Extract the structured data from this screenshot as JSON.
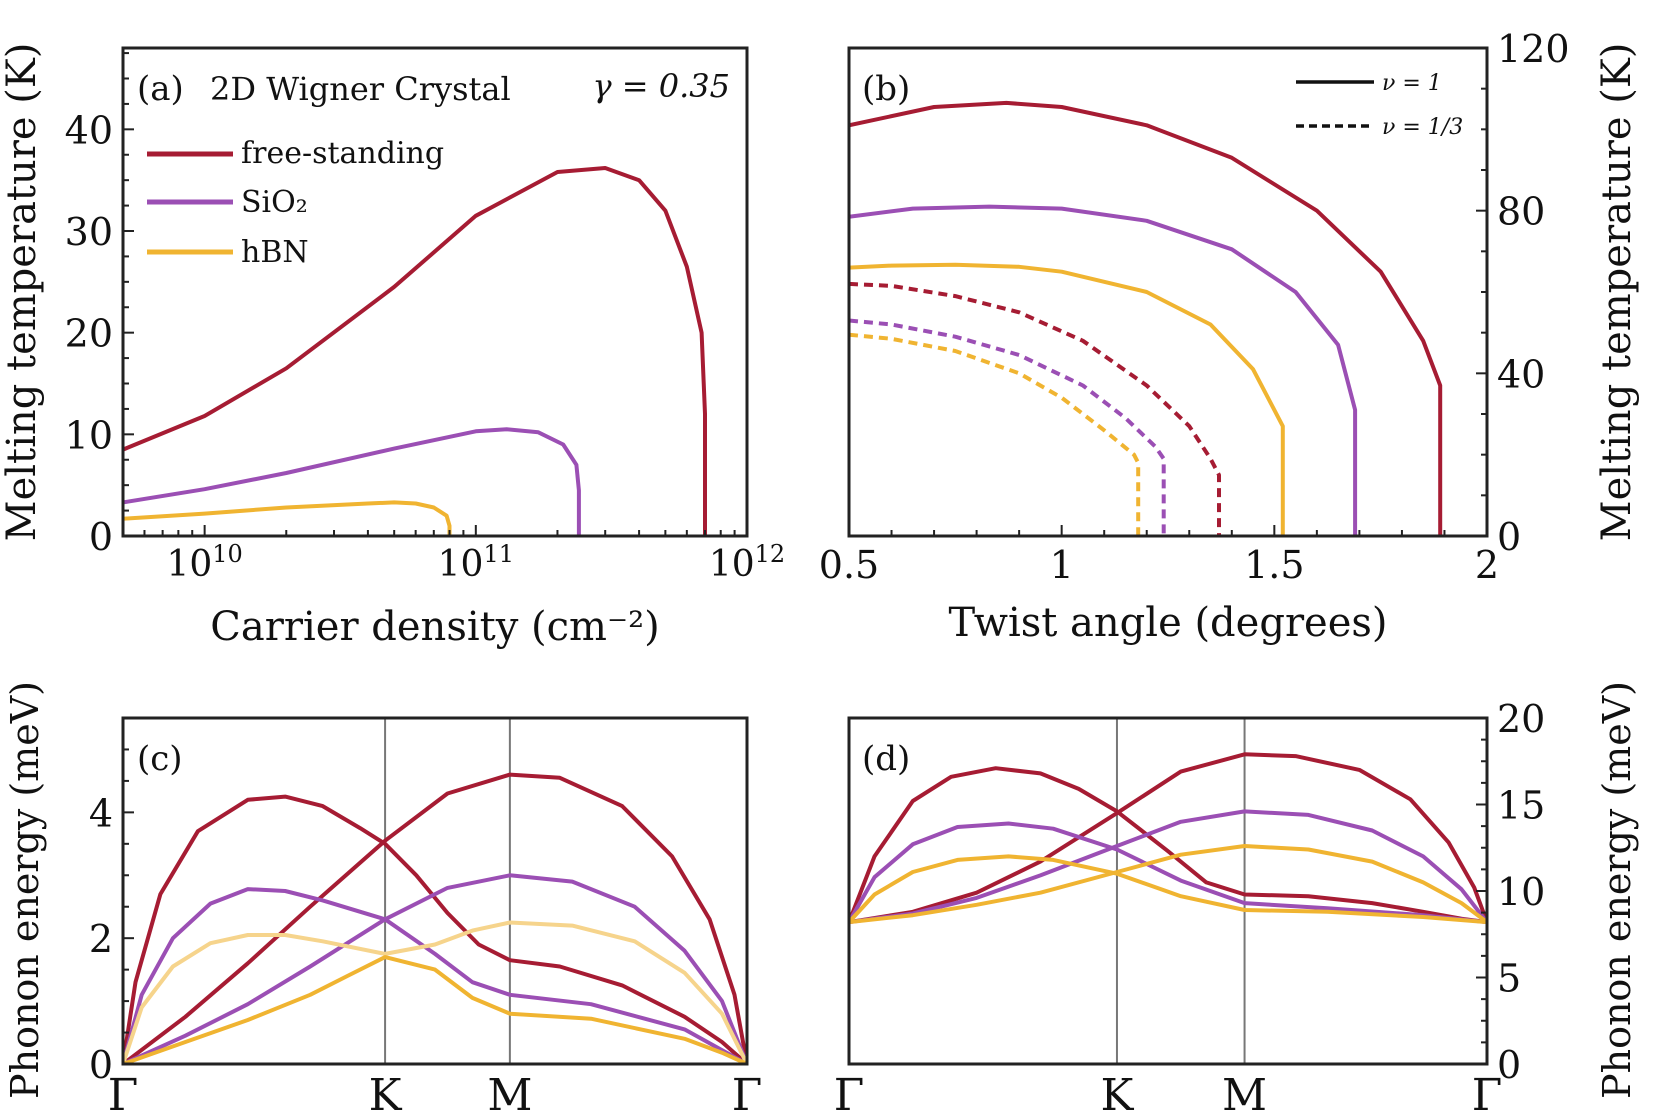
{
  "colors": {
    "free_standing": "#a61c33",
    "sio2": "#9b4fb4",
    "hbn": "#f0b431",
    "hbn_light": "#f6d48c",
    "kline": "#777777",
    "axis": "#222222"
  },
  "chart_data": [
    {
      "id": "a",
      "type": "line",
      "panel_label": "(a)",
      "title": "2D Wigner Crystal",
      "annotation": "γ = 0.35",
      "xlabel": "Carrier density (cm⁻²)",
      "ylabel": "Melting temperature (K)",
      "xscale": "log",
      "xlim": [
        5000000000.0,
        1000000000000.0
      ],
      "ylim": [
        0,
        48
      ],
      "xticks": [
        10000000000.0,
        100000000000.0,
        1000000000000.0
      ],
      "xtick_labels": [
        {
          "base": "10",
          "exp": "10"
        },
        {
          "base": "10",
          "exp": "11"
        },
        {
          "base": "10",
          "exp": "12"
        }
      ],
      "yticks": [
        0,
        10,
        20,
        30,
        40
      ],
      "ytick_labels": [
        "0",
        "10",
        "20",
        "30",
        "40"
      ],
      "legend": [
        "free-standing",
        "SiO₂",
        "hBN"
      ],
      "series": [
        {
          "name": "free-standing",
          "color_key": "free_standing",
          "dash": false,
          "x": [
            5000000000.0,
            10000000000.0,
            20000000000.0,
            50000000000.0,
            100000000000.0,
            200000000000.0,
            300000000000.0,
            400000000000.0,
            500000000000.0,
            600000000000.0,
            680000000000.0,
            700000000000.0,
            700000000000.0
          ],
          "y": [
            8.5,
            11.8,
            16.5,
            24.5,
            31.5,
            35.8,
            36.2,
            35.0,
            32.0,
            26.5,
            20.0,
            12.0,
            0
          ]
        },
        {
          "name": "SiO₂",
          "color_key": "sio2",
          "dash": false,
          "x": [
            5000000000.0,
            10000000000.0,
            20000000000.0,
            50000000000.0,
            100000000000.0,
            130000000000.0,
            170000000000.0,
            210000000000.0,
            235000000000.0,
            240000000000.0,
            240000000000.0
          ],
          "y": [
            3.3,
            4.6,
            6.2,
            8.6,
            10.3,
            10.5,
            10.2,
            9.0,
            7.0,
            4.5,
            0
          ]
        },
        {
          "name": "hBN",
          "color_key": "hbn",
          "dash": false,
          "x": [
            5000000000.0,
            10000000000.0,
            20000000000.0,
            40000000000.0,
            50000000000.0,
            60000000000.0,
            70000000000.0,
            78000000000.0,
            80000000000.0,
            80000000000.0
          ],
          "y": [
            1.7,
            2.2,
            2.8,
            3.2,
            3.3,
            3.2,
            2.8,
            2.0,
            1.0,
            0
          ]
        }
      ]
    },
    {
      "id": "b",
      "type": "line",
      "panel_label": "(b)",
      "xlabel": "Twist angle (degrees)",
      "ylabel": "Melting temperature (K)",
      "y_axis_side": "right",
      "xlim": [
        0.5,
        2
      ],
      "ylim": [
        0,
        120
      ],
      "xticks": [
        0.5,
        1,
        1.5,
        2
      ],
      "xtick_labels": [
        "0.5",
        "1",
        "1.5",
        "2"
      ],
      "yticks": [
        0,
        40,
        80,
        120
      ],
      "ytick_labels": [
        "0",
        "40",
        "80",
        "120"
      ],
      "legend": [
        "ν = 1",
        "ν = 1/3"
      ],
      "series": [
        {
          "name": "free-standing ν=1",
          "color_key": "free_standing",
          "dash": false,
          "x": [
            0.5,
            0.7,
            0.87,
            1.0,
            1.2,
            1.4,
            1.6,
            1.75,
            1.85,
            1.89,
            1.89
          ],
          "y": [
            101,
            105.5,
            106.5,
            105.5,
            101,
            93,
            80,
            65,
            48,
            37,
            0
          ]
        },
        {
          "name": "SiO₂ ν=1",
          "color_key": "sio2",
          "dash": false,
          "x": [
            0.5,
            0.65,
            0.83,
            1.0,
            1.2,
            1.4,
            1.55,
            1.65,
            1.69,
            1.69
          ],
          "y": [
            78.5,
            80.5,
            81,
            80.5,
            77.5,
            70.5,
            60,
            47,
            31,
            0
          ]
        },
        {
          "name": "hBN ν=1",
          "color_key": "hbn",
          "dash": false,
          "x": [
            0.5,
            0.6,
            0.75,
            0.9,
            1.0,
            1.2,
            1.35,
            1.45,
            1.52,
            1.52
          ],
          "y": [
            66,
            66.5,
            66.7,
            66.2,
            65,
            60,
            52,
            41,
            27,
            0
          ]
        },
        {
          "name": "free-standing ν=1/3",
          "color_key": "free_standing",
          "dash": true,
          "x": [
            0.5,
            0.6,
            0.75,
            0.9,
            1.05,
            1.2,
            1.3,
            1.35,
            1.37,
            1.37
          ],
          "y": [
            62,
            61.5,
            59,
            55,
            48,
            37,
            27,
            19,
            15,
            0
          ]
        },
        {
          "name": "SiO₂ ν=1/3",
          "color_key": "sio2",
          "dash": true,
          "x": [
            0.5,
            0.6,
            0.75,
            0.9,
            1.05,
            1.15,
            1.22,
            1.24,
            1.24
          ],
          "y": [
            53,
            52,
            49,
            44.5,
            37,
            29,
            22,
            19,
            0
          ]
        },
        {
          "name": "hBN ν=1/3",
          "color_key": "hbn",
          "dash": true,
          "x": [
            0.5,
            0.6,
            0.75,
            0.9,
            1.0,
            1.1,
            1.17,
            1.18,
            1.18
          ],
          "y": [
            49.5,
            48.5,
            45.5,
            40,
            34,
            26,
            20,
            18,
            0
          ]
        }
      ]
    },
    {
      "id": "c",
      "type": "line",
      "panel_label": "(c)",
      "ylabel": "Phonon energy (meV)",
      "xlim": [
        0,
        1
      ],
      "ylim": [
        0,
        5.5
      ],
      "yticks": [
        0,
        2,
        4
      ],
      "ytick_labels": [
        "0",
        "2",
        "4"
      ],
      "kpoints": {
        "labels": [
          "Γ",
          "K",
          "M",
          "Γ"
        ],
        "positions": [
          0,
          0.42,
          0.62,
          1
        ]
      },
      "series": [
        {
          "name": "free-standing branch 1",
          "color_key": "free_standing",
          "dash": false,
          "x": [
            0,
            0.02,
            0.06,
            0.12,
            0.2,
            0.26,
            0.32,
            0.38,
            0.42,
            0.47,
            0.52,
            0.57,
            0.62,
            0.7,
            0.8,
            0.9,
            0.96,
            1.0
          ],
          "y": [
            0,
            1.3,
            2.7,
            3.7,
            4.2,
            4.25,
            4.1,
            3.75,
            3.5,
            3.0,
            2.4,
            1.9,
            1.65,
            1.55,
            1.25,
            0.75,
            0.35,
            0
          ]
        },
        {
          "name": "free-standing branch 2",
          "color_key": "free_standing",
          "dash": false,
          "x": [
            0,
            0.1,
            0.2,
            0.3,
            0.42,
            0.52,
            0.62,
            0.7,
            0.8,
            0.88,
            0.94,
            0.98,
            1.0
          ],
          "y": [
            0,
            0.75,
            1.6,
            2.5,
            3.55,
            4.3,
            4.6,
            4.55,
            4.1,
            3.3,
            2.3,
            1.1,
            0
          ]
        },
        {
          "name": "SiO₂ branch 1",
          "color_key": "sio2",
          "dash": false,
          "x": [
            0,
            0.03,
            0.08,
            0.14,
            0.2,
            0.26,
            0.32,
            0.42,
            0.5,
            0.56,
            0.62,
            0.75,
            0.9,
            1.0
          ],
          "y": [
            0,
            1.1,
            2.0,
            2.55,
            2.78,
            2.75,
            2.6,
            2.3,
            1.75,
            1.3,
            1.1,
            0.95,
            0.55,
            0
          ]
        },
        {
          "name": "SiO₂ branch 2",
          "color_key": "sio2",
          "dash": false,
          "x": [
            0,
            0.1,
            0.2,
            0.3,
            0.42,
            0.52,
            0.62,
            0.72,
            0.82,
            0.9,
            0.96,
            1.0
          ],
          "y": [
            0,
            0.45,
            0.95,
            1.55,
            2.3,
            2.8,
            3.0,
            2.9,
            2.5,
            1.8,
            1.0,
            0
          ]
        },
        {
          "name": "hBN branch 1",
          "color_key": "hbn_light",
          "dash": false,
          "x": [
            0,
            0.03,
            0.08,
            0.14,
            0.2,
            0.26,
            0.32,
            0.42,
            0.5,
            0.56,
            0.62,
            0.72,
            0.82,
            0.9,
            0.96,
            1.0
          ],
          "y": [
            0,
            0.9,
            1.55,
            1.92,
            2.05,
            2.05,
            1.95,
            1.75,
            1.9,
            2.12,
            2.25,
            2.2,
            1.95,
            1.45,
            0.8,
            0
          ]
        },
        {
          "name": "hBN branch 2",
          "color_key": "hbn",
          "dash": false,
          "x": [
            0,
            0.1,
            0.2,
            0.3,
            0.36,
            0.42,
            0.5,
            0.56,
            0.62,
            0.75,
            0.9,
            0.96,
            1.0
          ],
          "y": [
            0,
            0.35,
            0.7,
            1.1,
            1.4,
            1.7,
            1.5,
            1.05,
            0.8,
            0.72,
            0.4,
            0.18,
            0
          ]
        }
      ]
    },
    {
      "id": "d",
      "type": "line",
      "panel_label": "(d)",
      "ylabel": "Phonon energy (meV)",
      "y_axis_side": "right",
      "xlim": [
        0,
        1
      ],
      "ylim": [
        0,
        20
      ],
      "yticks": [
        0,
        5,
        10,
        15,
        20
      ],
      "ytick_labels": [
        "0",
        "5",
        "10",
        "15",
        "20"
      ],
      "kpoints": {
        "labels": [
          "Γ",
          "K",
          "M",
          "Γ"
        ],
        "positions": [
          0,
          0.42,
          0.62,
          1
        ]
      },
      "series": [
        {
          "name": "free-standing branch 1",
          "color_key": "free_standing",
          "dash": false,
          "x": [
            0,
            0.04,
            0.1,
            0.16,
            0.23,
            0.3,
            0.36,
            0.42,
            0.5,
            0.56,
            0.62,
            0.72,
            0.82,
            0.9,
            0.96,
            1.0
          ],
          "y": [
            8.2,
            12.0,
            15.2,
            16.6,
            17.1,
            16.8,
            15.9,
            14.6,
            12.3,
            10.5,
            9.8,
            9.7,
            9.3,
            8.8,
            8.4,
            8.2
          ]
        },
        {
          "name": "free-standing branch 2",
          "color_key": "free_standing",
          "dash": false,
          "x": [
            0,
            0.1,
            0.2,
            0.3,
            0.42,
            0.52,
            0.62,
            0.7,
            0.8,
            0.88,
            0.94,
            0.98,
            1.0
          ],
          "y": [
            8.2,
            8.8,
            9.9,
            11.7,
            14.5,
            16.9,
            17.9,
            17.8,
            17.0,
            15.3,
            12.8,
            10.2,
            8.2
          ]
        },
        {
          "name": "SiO₂ branch 1",
          "color_key": "sio2",
          "dash": false,
          "x": [
            0,
            0.04,
            0.1,
            0.17,
            0.25,
            0.32,
            0.42,
            0.52,
            0.62,
            0.75,
            0.9,
            1.0
          ],
          "y": [
            8.2,
            10.8,
            12.7,
            13.7,
            13.9,
            13.6,
            12.4,
            10.6,
            9.3,
            9.0,
            8.6,
            8.2
          ]
        },
        {
          "name": "SiO₂ branch 2",
          "color_key": "sio2",
          "dash": false,
          "x": [
            0,
            0.1,
            0.2,
            0.3,
            0.42,
            0.52,
            0.62,
            0.72,
            0.82,
            0.9,
            0.96,
            1.0
          ],
          "y": [
            8.2,
            8.7,
            9.6,
            10.9,
            12.6,
            14.0,
            14.6,
            14.4,
            13.5,
            12.0,
            10.1,
            8.2
          ]
        },
        {
          "name": "hBN branch 1",
          "color_key": "hbn",
          "dash": false,
          "x": [
            0,
            0.04,
            0.1,
            0.17,
            0.25,
            0.32,
            0.42,
            0.52,
            0.62,
            0.75,
            0.9,
            1.0
          ],
          "y": [
            8.2,
            9.8,
            11.1,
            11.8,
            12.0,
            11.8,
            11.0,
            9.7,
            8.9,
            8.8,
            8.5,
            8.2
          ]
        },
        {
          "name": "hBN branch 2",
          "color_key": "hbn",
          "dash": false,
          "x": [
            0,
            0.1,
            0.2,
            0.3,
            0.42,
            0.52,
            0.62,
            0.72,
            0.82,
            0.9,
            0.96,
            1.0
          ],
          "y": [
            8.2,
            8.6,
            9.2,
            9.9,
            11.1,
            12.1,
            12.6,
            12.4,
            11.7,
            10.5,
            9.3,
            8.2
          ]
        }
      ]
    }
  ]
}
